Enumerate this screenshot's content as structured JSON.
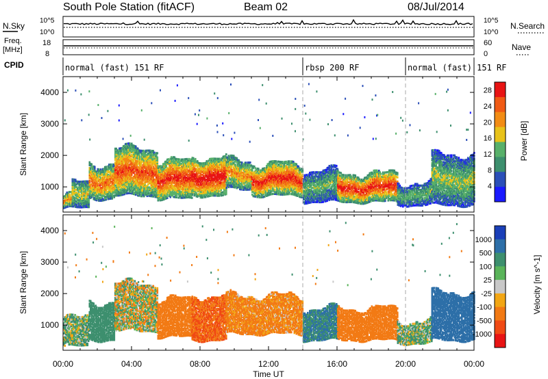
{
  "title": {
    "station": "South Pole Station (fitACF)",
    "beam": "Beam 02",
    "date": "08/Jul/2014"
  },
  "header_panels": {
    "nsky_label": "N.Sky",
    "nsky_ticks": [
      "10^5",
      "10^0"
    ],
    "nsearch_label": "N.Search",
    "nsearch_ticks": [
      "10^5",
      "10^0"
    ],
    "freq_label": "Freq.",
    "freq_unit": "[MHz]",
    "freq_ticks": [
      "18",
      "8"
    ],
    "nave_label": "Nave",
    "nave_ticks": [
      "60",
      "0"
    ],
    "cpid_label": "CPID"
  },
  "cpid_segments": [
    {
      "label": "normal (fast) 151 RF",
      "start_hour": 0,
      "end_hour": 14
    },
    {
      "label": "rbsp 200 RF",
      "start_hour": 14,
      "end_hour": 20
    },
    {
      "label": "normal (fast) 151 RF",
      "start_hour": 20,
      "end_hour": 24
    }
  ],
  "chart_data": [
    {
      "type": "heatmap",
      "name": "power",
      "xlabel": "Time UT",
      "ylabel": "Slant Range [km]",
      "xlim": [
        0,
        24
      ],
      "ylim": [
        200,
        4500
      ],
      "x_ticks": [
        "00:00",
        "04:00",
        "08:00",
        "12:00",
        "16:00",
        "20:00",
        "00:00"
      ],
      "y_ticks": [
        1000,
        2000,
        3000,
        4000
      ],
      "colorbar": {
        "label": "Power [dB]",
        "ticks": [
          4,
          8,
          12,
          16,
          20,
          24,
          28
        ],
        "range": [
          0,
          30
        ],
        "colors": [
          "#1a1aff",
          "#2b4fb8",
          "#3d8f6e",
          "#58b06a",
          "#e8c21a",
          "#f28c14",
          "#f05a14",
          "#e81414"
        ]
      },
      "bands": [
        {
          "x": [
            0.0,
            0.5
          ],
          "range": [
            300,
            700
          ],
          "level": 20
        },
        {
          "x": [
            0.5,
            1.5
          ],
          "range": [
            300,
            1100
          ],
          "level": 16
        },
        {
          "x": [
            1.5,
            3.0
          ],
          "range": [
            600,
            1700
          ],
          "level": 22
        },
        {
          "x": [
            3.0,
            5.5
          ],
          "range": [
            700,
            2200
          ],
          "level": 24
        },
        {
          "x": [
            5.5,
            7.5
          ],
          "range": [
            600,
            1800
          ],
          "level": 26
        },
        {
          "x": [
            7.5,
            9.5
          ],
          "range": [
            700,
            1900
          ],
          "level": 28
        },
        {
          "x": [
            9.5,
            11.0
          ],
          "range": [
            900,
            1800
          ],
          "level": 20
        },
        {
          "x": [
            11.0,
            14.0
          ],
          "range": [
            700,
            1700
          ],
          "level": 26
        },
        {
          "x": [
            14.0,
            16.0
          ],
          "range": [
            500,
            1500
          ],
          "level": 12
        },
        {
          "x": [
            16.0,
            19.5
          ],
          "range": [
            500,
            1400
          ],
          "level": 26
        },
        {
          "x": [
            19.5,
            21.5
          ],
          "range": [
            400,
            1100
          ],
          "level": 12
        },
        {
          "x": [
            21.5,
            24.0
          ],
          "range": [
            400,
            2000
          ],
          "level": 14
        }
      ]
    },
    {
      "type": "heatmap",
      "name": "velocity",
      "xlabel": "Time UT",
      "ylabel": "Slant Range [km]",
      "xlim": [
        0,
        24
      ],
      "ylim": [
        200,
        4500
      ],
      "x_ticks": [
        "00:00",
        "04:00",
        "08:00",
        "12:00",
        "16:00",
        "20:00",
        "00:00"
      ],
      "y_ticks": [
        1000,
        2000,
        3000,
        4000
      ],
      "colorbar": {
        "label": "Velocity [m s^-1]",
        "ticks": [
          1000,
          500,
          100,
          25,
          -25,
          -100,
          -500,
          -1000
        ],
        "colors": [
          "#1a3fb8",
          "#2d6fa8",
          "#3d8f6e",
          "#5ab45a",
          "#c8c8c8",
          "#f2a614",
          "#f27a14",
          "#f04a14",
          "#e81414"
        ]
      },
      "bands": [
        {
          "x": [
            0.0,
            1.5
          ],
          "range": [
            300,
            1200
          ],
          "level": 100
        },
        {
          "x": [
            1.5,
            3.0
          ],
          "range": [
            500,
            1700
          ],
          "level": 300
        },
        {
          "x": [
            3.0,
            5.5
          ],
          "range": [
            800,
            2300
          ],
          "level": 0
        },
        {
          "x": [
            5.5,
            7.5
          ],
          "range": [
            600,
            1800
          ],
          "level": -300
        },
        {
          "x": [
            7.5,
            9.5
          ],
          "range": [
            500,
            1900
          ],
          "level": -500
        },
        {
          "x": [
            9.5,
            14.0
          ],
          "range": [
            700,
            1900
          ],
          "level": -200
        },
        {
          "x": [
            14.0,
            16.0
          ],
          "range": [
            500,
            1500
          ],
          "level": 500
        },
        {
          "x": [
            16.0,
            19.5
          ],
          "range": [
            500,
            1500
          ],
          "level": -300
        },
        {
          "x": [
            19.5,
            21.5
          ],
          "range": [
            400,
            1100
          ],
          "level": 100
        },
        {
          "x": [
            21.5,
            24.0
          ],
          "range": [
            500,
            2000
          ],
          "level": 700
        }
      ]
    }
  ]
}
